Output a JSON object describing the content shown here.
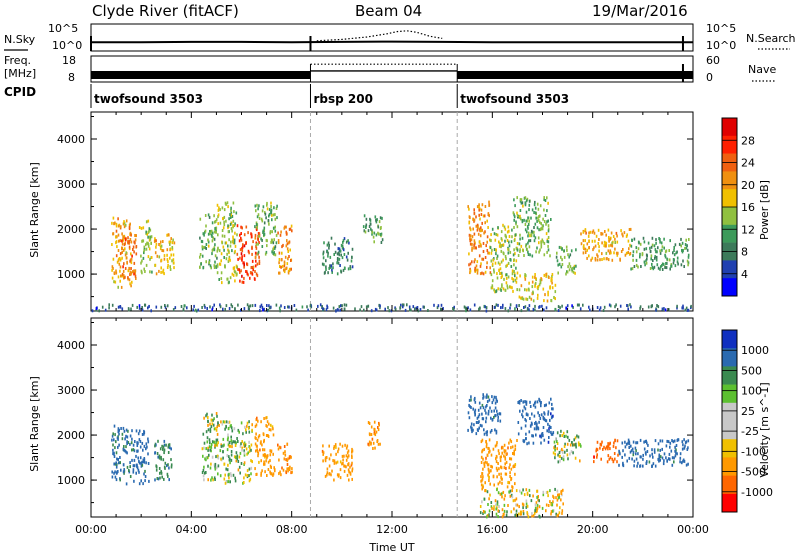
{
  "header": {
    "station": "Clyde River (fitACF)",
    "beam": "Beam 04",
    "date": "19/Mar/2016"
  },
  "labels": {
    "nsky": "N.Sky",
    "nsky_ticks": [
      "10^5",
      "10^0"
    ],
    "nsearch": "N.Search",
    "nsearch_ticks": [
      "10^5",
      "10^0"
    ],
    "freq": "Freq.",
    "freq_unit": "[MHz]",
    "freq_ticks": [
      "18",
      "8"
    ],
    "nave": "Nave",
    "nave_ticks": [
      "60",
      "0"
    ],
    "cpid": "CPID"
  },
  "colors": {
    "freq_bar": "#000000",
    "power_scale": [
      "#0000ff",
      "#2040b0",
      "#3c7a5a",
      "#3c9a5a",
      "#90c040",
      "#f0c000",
      "#f09010",
      "#f06010",
      "#ff2000",
      "#e00000"
    ],
    "velocity_scale": [
      "#ff0000",
      "#ff6600",
      "#ff9900",
      "#f0c000",
      "#c8c8c8",
      "#c8c8c8",
      "#5cc030",
      "#3a8a50",
      "#2a6ab0",
      "#1030c0"
    ]
  },
  "chart_data": [
    {
      "type": "table",
      "name": "cpid_modes",
      "x_unit": "hours UT",
      "modes": [
        {
          "label": "twofsound 3503",
          "start": 0.0,
          "end": 8.75
        },
        {
          "label": "rbsp 200",
          "start": 8.75,
          "end": 14.6
        },
        {
          "label": "twofsound 3503",
          "start": 14.6,
          "end": 24.0
        }
      ]
    },
    {
      "type": "line",
      "name": "nsky_nsearch",
      "xlim": [
        0,
        24
      ],
      "y_scale": "log",
      "ylim": [
        1,
        100000
      ],
      "series": [
        {
          "name": "N.Sky",
          "style": "solid",
          "x": [
            0,
            2,
            4,
            6,
            8,
            10,
            12,
            14,
            16,
            18,
            20,
            22,
            24
          ],
          "y": [
            30,
            30,
            35,
            35,
            30,
            35,
            40,
            35,
            30,
            30,
            30,
            30,
            30
          ]
        },
        {
          "name": "N.Search",
          "style": "dotted",
          "x": [
            9,
            10,
            11,
            11.8,
            12.2,
            12.6,
            13,
            13.5,
            14
          ],
          "y": [
            60,
            120,
            400,
            2000,
            6000,
            9000,
            4000,
            600,
            200
          ]
        }
      ]
    },
    {
      "type": "line",
      "name": "freq_nave",
      "xlim": [
        0,
        24
      ],
      "series": [
        {
          "name": "Freq. [MHz]",
          "style": "solid",
          "ylim": [
            8,
            18
          ],
          "x": [
            0,
            8.75,
            8.75,
            14.6,
            14.6,
            24
          ],
          "y": [
            10.5,
            10.5,
            12.2,
            12.2,
            10.5,
            10.5
          ]
        },
        {
          "name": "Nave",
          "style": "dotted",
          "ylim": [
            0,
            60
          ],
          "x": [
            8.75,
            14.6
          ],
          "y": [
            42,
            42
          ]
        }
      ]
    },
    {
      "type": "heatmap",
      "name": "power",
      "xlabel": "",
      "ylabel": "Slant Range [km]",
      "xlim": [
        0,
        24
      ],
      "ylim": [
        180,
        4600
      ],
      "y_ticks": [
        1000,
        2000,
        3000,
        4000
      ],
      "colorbar_label": "Power [dB]",
      "colorbar_ticks": [
        "28",
        "24",
        "20",
        "16",
        "12",
        "8",
        "4"
      ],
      "clim": [
        0,
        30
      ],
      "blobs": [
        {
          "t0": 0.8,
          "t1": 1.6,
          "r0": 700,
          "r1": 2250,
          "v": 18
        },
        {
          "t0": 1.2,
          "t1": 1.8,
          "r0": 900,
          "r1": 1900,
          "v": 22
        },
        {
          "t0": 1.9,
          "t1": 2.4,
          "r0": 1000,
          "r1": 2200,
          "v": 14
        },
        {
          "t0": 2.5,
          "t1": 2.9,
          "r0": 950,
          "r1": 1800,
          "v": 18
        },
        {
          "t0": 3.0,
          "t1": 3.3,
          "r0": 1100,
          "r1": 1900,
          "v": 16
        },
        {
          "t0": 4.3,
          "t1": 5.0,
          "r0": 1100,
          "r1": 2350,
          "v": 12
        },
        {
          "t0": 5.0,
          "t1": 5.8,
          "r0": 800,
          "r1": 2600,
          "v": 14
        },
        {
          "t0": 5.8,
          "t1": 6.7,
          "r0": 800,
          "r1": 2100,
          "v": 24
        },
        {
          "t0": 6.5,
          "t1": 7.4,
          "r0": 1400,
          "r1": 2600,
          "v": 12
        },
        {
          "t0": 7.4,
          "t1": 8.0,
          "r0": 1000,
          "r1": 2100,
          "v": 20
        },
        {
          "t0": 9.2,
          "t1": 10.4,
          "r0": 1000,
          "r1": 1800,
          "v": 8
        },
        {
          "t0": 10.8,
          "t1": 11.6,
          "r0": 1700,
          "r1": 2300,
          "v": 10
        },
        {
          "t0": 15.0,
          "t1": 15.9,
          "r0": 1000,
          "r1": 2600,
          "v": 20
        },
        {
          "t0": 15.9,
          "t1": 17.0,
          "r0": 600,
          "r1": 2100,
          "v": 14
        },
        {
          "t0": 17.0,
          "t1": 18.5,
          "r0": 400,
          "r1": 1000,
          "v": 16
        },
        {
          "t0": 16.8,
          "t1": 18.3,
          "r0": 1400,
          "r1": 2700,
          "v": 12
        },
        {
          "t0": 18.5,
          "t1": 19.3,
          "r0": 1000,
          "r1": 1600,
          "v": 12
        },
        {
          "t0": 19.5,
          "t1": 21.5,
          "r0": 1300,
          "r1": 2000,
          "v": 18
        },
        {
          "t0": 21.5,
          "t1": 23.8,
          "r0": 1100,
          "r1": 1800,
          "v": 10
        },
        {
          "t0": 0.0,
          "t1": 24.0,
          "r0": 180,
          "r1": 320,
          "v": 6
        }
      ]
    },
    {
      "type": "heatmap",
      "name": "velocity",
      "xlabel": "Time UT",
      "ylabel": "Slant Range [km]",
      "xlim": [
        0,
        24
      ],
      "ylim": [
        180,
        4600
      ],
      "x_ticks": [
        "00:00",
        "04:00",
        "08:00",
        "12:00",
        "16:00",
        "20:00",
        "00:00"
      ],
      "y_ticks": [
        1000,
        2000,
        3000,
        4000
      ],
      "colorbar_label": "Velocity [m s^-1]",
      "colorbar_ticks": [
        "1000",
        "500",
        "100",
        "25",
        "-25",
        "-100",
        "-500",
        "-1000"
      ],
      "clim": [
        -1000,
        1000
      ],
      "blobs": [
        {
          "t0": 0.8,
          "t1": 1.6,
          "r0": 900,
          "r1": 2200,
          "v": 600
        },
        {
          "t0": 1.6,
          "t1": 2.3,
          "r0": 900,
          "r1": 2100,
          "v": 700
        },
        {
          "t0": 2.5,
          "t1": 3.2,
          "r0": 1000,
          "r1": 1900,
          "v": 400
        },
        {
          "t0": 4.4,
          "t1": 5.2,
          "r0": 1000,
          "r1": 2500,
          "v": 60
        },
        {
          "t0": 5.2,
          "t1": 6.4,
          "r0": 900,
          "r1": 2300,
          "v": 100
        },
        {
          "t0": 6.5,
          "t1": 7.3,
          "r0": 1100,
          "r1": 2400,
          "v": -300
        },
        {
          "t0": 7.4,
          "t1": 8.0,
          "r0": 1100,
          "r1": 1800,
          "v": -400
        },
        {
          "t0": 9.2,
          "t1": 10.4,
          "r0": 1000,
          "r1": 1800,
          "v": -300
        },
        {
          "t0": 11.0,
          "t1": 11.5,
          "r0": 1700,
          "r1": 2300,
          "v": -350
        },
        {
          "t0": 15.0,
          "t1": 16.3,
          "r0": 2000,
          "r1": 2900,
          "v": 700
        },
        {
          "t0": 15.5,
          "t1": 17.0,
          "r0": 800,
          "r1": 1900,
          "v": -300
        },
        {
          "t0": 17.0,
          "t1": 18.4,
          "r0": 1800,
          "r1": 2800,
          "v": 800
        },
        {
          "t0": 15.5,
          "t1": 18.8,
          "r0": 180,
          "r1": 800,
          "v": -60
        },
        {
          "t0": 18.4,
          "t1": 19.5,
          "r0": 1400,
          "r1": 2100,
          "v": 50
        },
        {
          "t0": 20.0,
          "t1": 21.0,
          "r0": 1400,
          "r1": 1900,
          "v": -800
        },
        {
          "t0": 21.0,
          "t1": 23.8,
          "r0": 1300,
          "r1": 1900,
          "v": 700
        }
      ]
    }
  ]
}
